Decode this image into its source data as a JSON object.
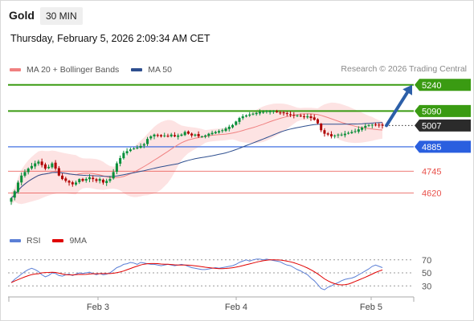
{
  "header": {
    "title": "Gold",
    "timeframe": "30 MIN",
    "datetime": "Thursday, February 5, 2026 2:09:34 AM CET"
  },
  "legend": {
    "items": [
      {
        "label": "MA 20 + Bollinger Bands",
        "color": "#f08080"
      },
      {
        "label": "MA 50",
        "color": "#2e4f8f"
      }
    ],
    "credit": "Research © 2026 Trading Central"
  },
  "rsi_legend": {
    "items": [
      {
        "label": "RSI",
        "color": "#5b7fd6"
      },
      {
        "label": "9MA",
        "color": "#e00000"
      }
    ]
  },
  "colors": {
    "candle_up": "#0a8f3a",
    "candle_down": "#b00000",
    "target": "#3a9b12",
    "pivot": "#2a5fdf",
    "support": "#e8504a",
    "current": "#2b2b2b",
    "arrow": "#2c5fa8"
  },
  "chart_data": [
    {
      "type": "candlestick",
      "x_tick_labels": [
        "Feb 3",
        "Feb 4",
        "Feb 5"
      ],
      "ylim": [
        4475,
        5285
      ],
      "levels": [
        {
          "label": "5240",
          "value": 5240,
          "kind": "target"
        },
        {
          "label": "5090",
          "value": 5090,
          "kind": "target"
        },
        {
          "label": "5007",
          "value": 5007,
          "kind": "current"
        },
        {
          "label": "4885",
          "value": 4885,
          "kind": "pivot"
        },
        {
          "label": "4745",
          "value": 4745,
          "kind": "support"
        },
        {
          "label": "4620",
          "value": 4620,
          "kind": "support"
        }
      ],
      "close_series": [
        4590,
        4630,
        4680,
        4720,
        4740,
        4760,
        4775,
        4790,
        4800,
        4780,
        4760,
        4770,
        4790,
        4760,
        4720,
        4700,
        4690,
        4680,
        4670,
        4680,
        4700,
        4690,
        4700,
        4710,
        4700,
        4690,
        4700,
        4680,
        4690,
        4700,
        4740,
        4790,
        4820,
        4850,
        4860,
        4870,
        4875,
        4880,
        4890,
        4900,
        4930,
        4945,
        4955,
        4950,
        4945,
        4950,
        4945,
        4955,
        4945,
        4950,
        4955,
        4970,
        4960,
        4950,
        4955,
        4945,
        4945,
        4950,
        4960,
        4965,
        4970,
        4975,
        4980,
        4990,
        5000,
        5010,
        5030,
        5050,
        5060,
        5065,
        5070,
        5075,
        5080,
        5085,
        5085,
        5090,
        5088,
        5090,
        5085,
        5080,
        5078,
        5075,
        5070,
        5065,
        5065,
        5060,
        5055,
        5060,
        5050,
        5040,
        5020,
        4980,
        4960,
        4955,
        4945,
        4950,
        4955,
        4955,
        4960,
        4965,
        4970,
        4975,
        4985,
        4995,
        5005,
        5010,
        5012,
        5010,
        5009,
        5007
      ],
      "ma20_label": "MA 20 + Bollinger Bands",
      "ma50_label": "MA 50"
    },
    {
      "type": "line",
      "series": [
        {
          "name": "RSI"
        },
        {
          "name": "9MA"
        }
      ],
      "y_tick_labels": [
        70,
        50,
        30
      ],
      "ylim": [
        18,
        82
      ],
      "rsi": [
        35,
        40,
        44,
        48,
        52,
        55,
        57,
        55,
        52,
        47,
        44,
        46,
        50,
        49,
        46,
        45,
        47,
        48,
        46,
        48,
        50,
        49,
        50,
        51,
        49,
        47,
        49,
        47,
        48,
        50,
        54,
        58,
        60,
        63,
        64,
        66,
        65,
        63,
        66,
        65,
        64,
        63,
        63,
        62,
        61,
        62,
        63,
        62,
        61,
        62,
        63,
        62,
        60,
        58,
        57,
        56,
        55,
        55,
        56,
        57,
        58,
        57,
        58,
        59,
        60,
        61,
        63,
        66,
        68,
        70,
        68,
        70,
        71,
        71,
        70,
        71,
        70,
        69,
        68,
        67,
        64,
        62,
        61,
        58,
        55,
        53,
        50,
        47,
        42,
        38,
        32,
        26,
        24,
        28,
        30,
        33,
        35,
        38,
        40,
        41,
        42,
        44,
        47,
        50,
        53,
        56,
        60,
        62,
        60,
        58
      ]
    }
  ]
}
